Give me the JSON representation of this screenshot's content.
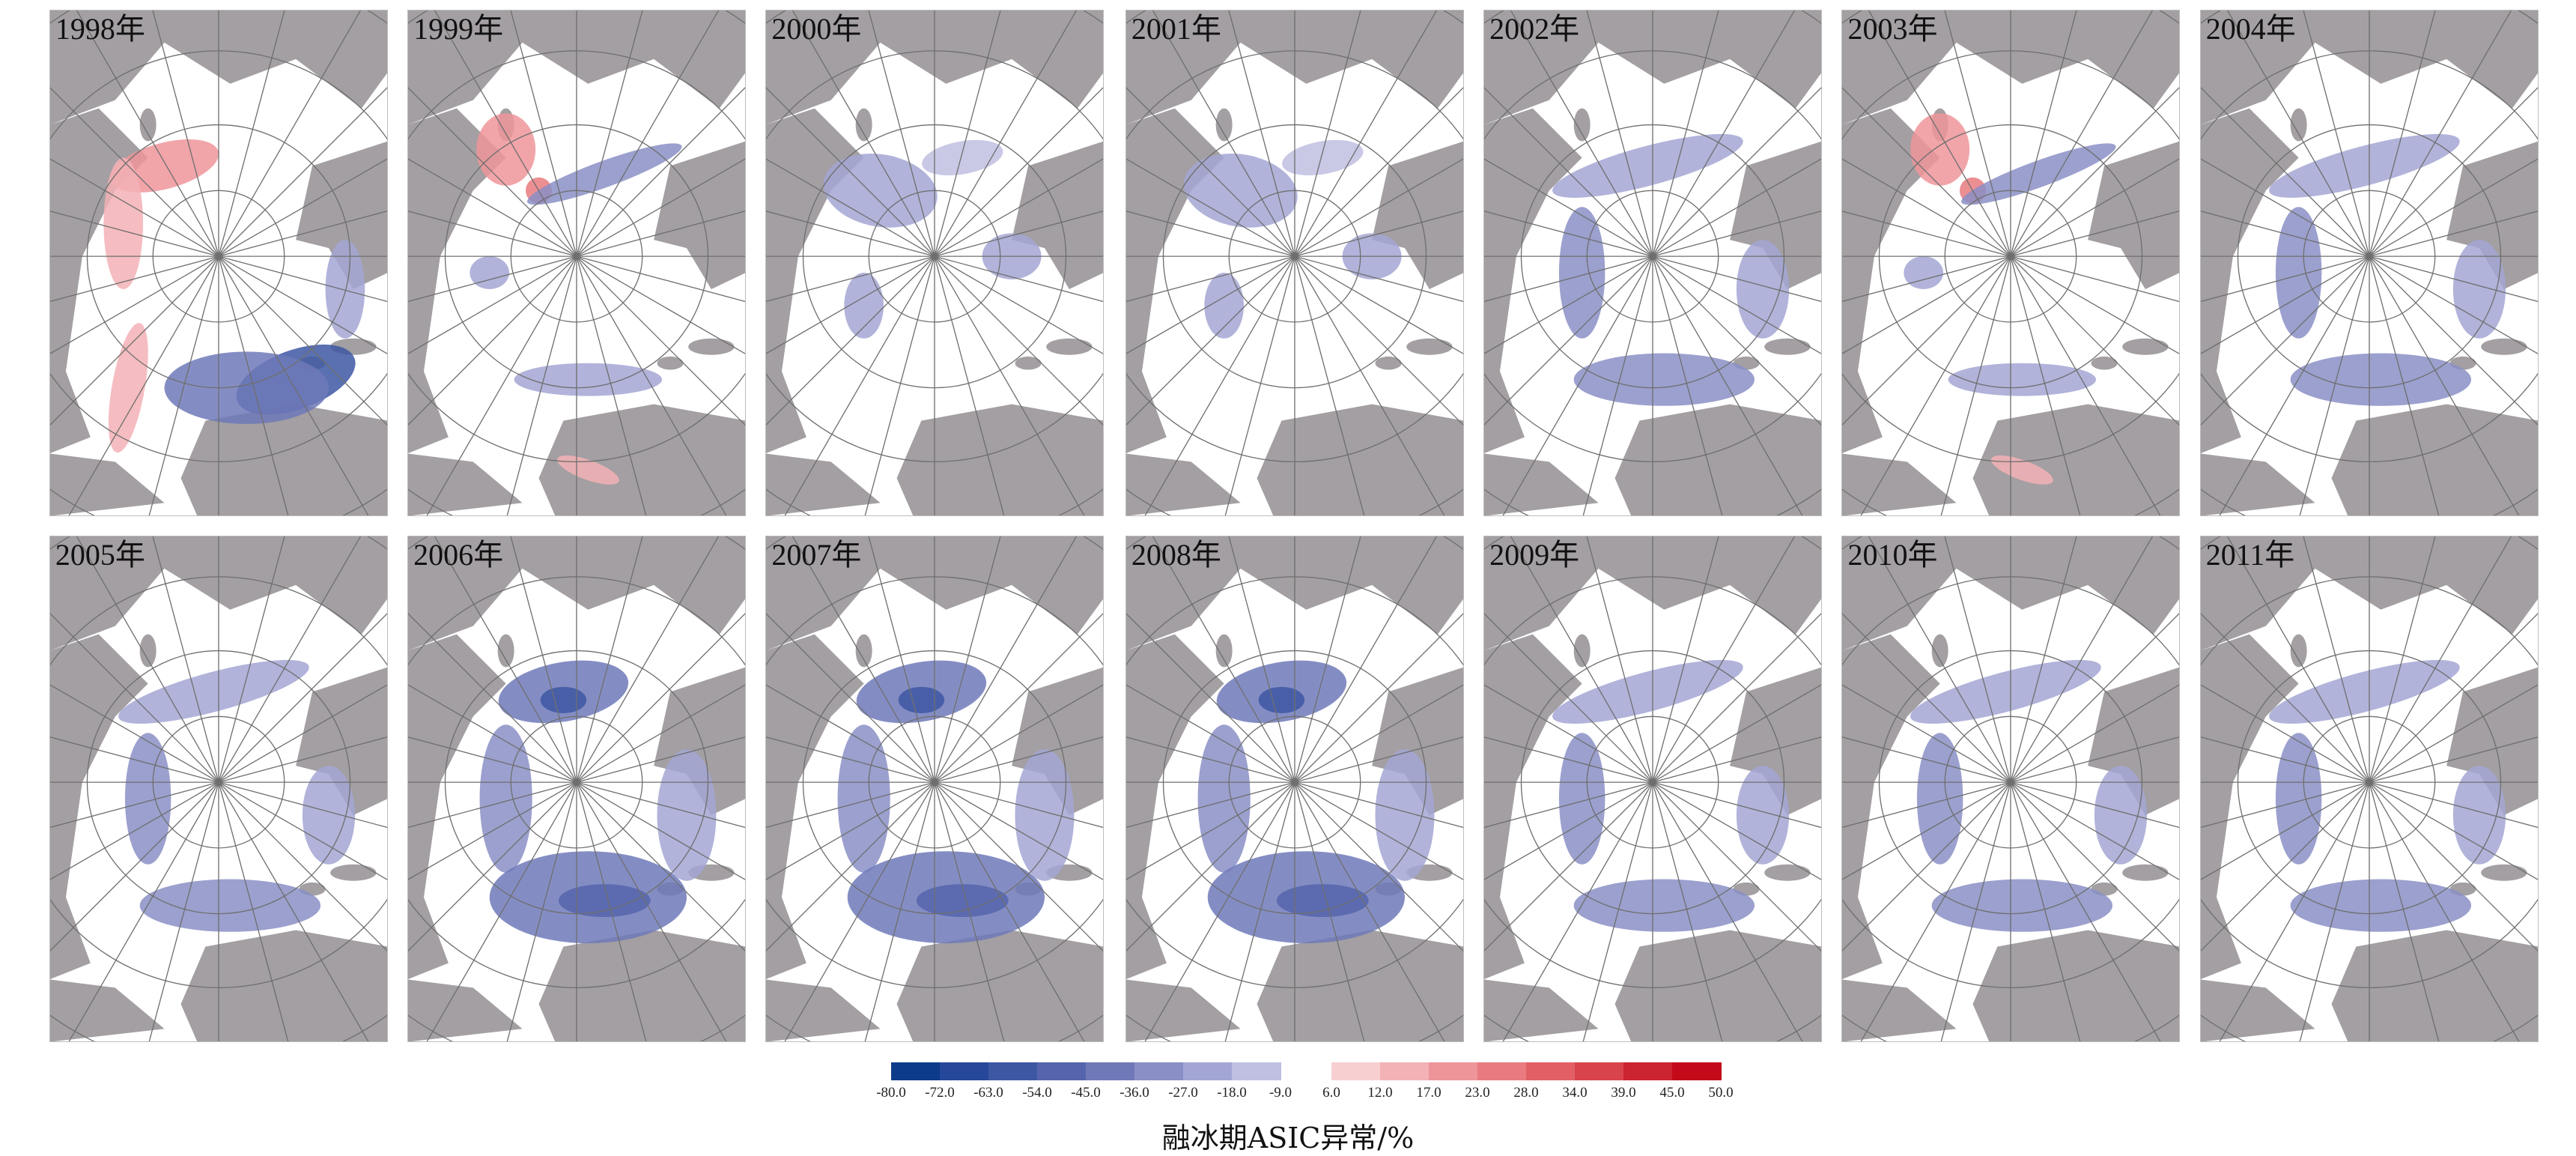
{
  "panels": [
    {
      "label": "1998年",
      "anomaly": "mixed-positive"
    },
    {
      "label": "1999年",
      "anomaly": "mixed"
    },
    {
      "label": "2000年",
      "anomaly": "weak-negative"
    },
    {
      "label": "2001年",
      "anomaly": "weak-negative"
    },
    {
      "label": "2002年",
      "anomaly": "negative"
    },
    {
      "label": "2003年",
      "anomaly": "mixed"
    },
    {
      "label": "2004年",
      "anomaly": "negative"
    },
    {
      "label": "2005年",
      "anomaly": "negative"
    },
    {
      "label": "2006年",
      "anomaly": "strong-negative"
    },
    {
      "label": "2007年",
      "anomaly": "strong-negative"
    },
    {
      "label": "2008年",
      "anomaly": "strong-negative"
    },
    {
      "label": "2009年",
      "anomaly": "negative"
    },
    {
      "label": "2010年",
      "anomaly": "negative"
    },
    {
      "label": "2011年",
      "anomaly": "negative"
    }
  ],
  "colors": {
    "land": "#a39fa2",
    "ice_background": "#ffffff",
    "gridline": "#6f6f6f"
  },
  "colorbar": {
    "title": "融冰期ASIC异常/%",
    "negative": {
      "ticks": [
        "-80.0",
        "-72.0",
        "-63.0",
        "-54.0",
        "-45.0",
        "-36.0",
        "-27.0",
        "-18.0",
        "-9.0"
      ],
      "colors": [
        "#0d3b8c",
        "#26479a",
        "#3d57a3",
        "#5565ad",
        "#6f79b8",
        "#8a8fc6",
        "#a3a6d4",
        "#bfc0e2"
      ]
    },
    "positive": {
      "ticks": [
        "6.0",
        "12.0",
        "17.0",
        "23.0",
        "28.0",
        "34.0",
        "39.0",
        "45.0",
        "50.0"
      ],
      "colors": [
        "#f7cfd1",
        "#f3b2b6",
        "#ee959a",
        "#e97b80",
        "#e25f66",
        "#d9434c",
        "#cc2430",
        "#c40a1a"
      ]
    }
  }
}
